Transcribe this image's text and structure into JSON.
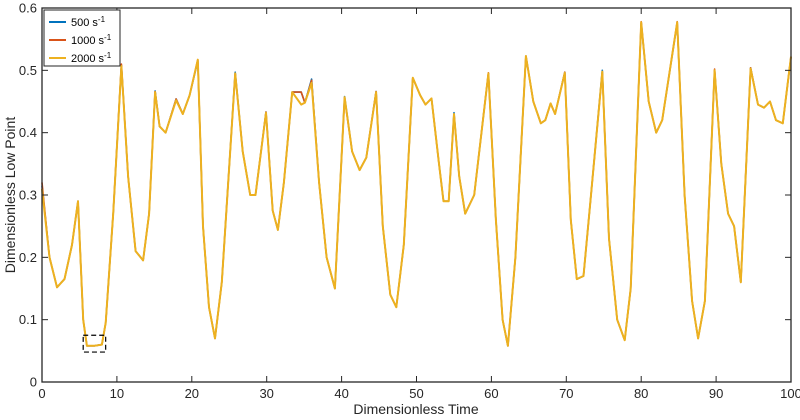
{
  "chart_data": {
    "type": "line",
    "xlabel": "Dimensionless Time",
    "ylabel": "Dimensionless Low Point",
    "xlim": [
      0,
      100
    ],
    "ylim": [
      0,
      0.6
    ],
    "xticks": [
      0,
      10,
      20,
      30,
      40,
      50,
      60,
      70,
      80,
      90,
      100
    ],
    "yticks": [
      0,
      0.1,
      0.2,
      0.3,
      0.4,
      0.5,
      0.6
    ],
    "xtick_labels": [
      "0",
      "10",
      "20",
      "30",
      "40",
      "50",
      "60",
      "70",
      "80",
      "90",
      "100"
    ],
    "ytick_labels": [
      "0",
      "0.1",
      "0.2",
      "0.3",
      "0.4",
      "0.5",
      "0.6"
    ],
    "grid": false,
    "legend_position": "top-left",
    "annotation": "dashed box around the minimum near x = 5.5–8.5, y ≈ 0.06",
    "annotation_box": {
      "x": [
        5.5,
        8.5
      ],
      "y": [
        0.048,
        0.075
      ]
    },
    "series": [
      {
        "name": "500 s",
        "unit_exponent": "-1",
        "color": "#0072BD",
        "peaks": [
          [
            0,
            0.315
          ],
          [
            4.8,
            0.29
          ],
          [
            10.6,
            0.508
          ],
          [
            15.1,
            0.467
          ],
          [
            17.9,
            0.454
          ],
          [
            20.8,
            0.515
          ],
          [
            25.8,
            0.497
          ],
          [
            29.9,
            0.433
          ],
          [
            34.6,
            0.465
          ],
          [
            36.0,
            0.486
          ],
          [
            40.4,
            0.458
          ],
          [
            44.6,
            0.466
          ],
          [
            49.5,
            0.488
          ],
          [
            52.0,
            0.455
          ],
          [
            55.0,
            0.432
          ],
          [
            59.6,
            0.495
          ],
          [
            64.6,
            0.523
          ],
          [
            67.9,
            0.447
          ],
          [
            69.8,
            0.497
          ],
          [
            74.8,
            0.5
          ],
          [
            80.0,
            0.576
          ],
          [
            84.8,
            0.576
          ],
          [
            89.8,
            0.5
          ],
          [
            94.6,
            0.504
          ],
          [
            97.2,
            0.45
          ],
          [
            100,
            0.522
          ]
        ]
      },
      {
        "name": "1000 s",
        "unit_exponent": "-1",
        "color": "#D95319",
        "peaks": [
          [
            0,
            0.32
          ],
          [
            4.8,
            0.29
          ],
          [
            10.6,
            0.51
          ],
          [
            15.1,
            0.466
          ],
          [
            17.9,
            0.454
          ],
          [
            20.8,
            0.517
          ],
          [
            25.8,
            0.495
          ],
          [
            29.9,
            0.433
          ],
          [
            34.6,
            0.465
          ],
          [
            36.0,
            0.484
          ],
          [
            40.4,
            0.455
          ],
          [
            44.6,
            0.466
          ],
          [
            49.5,
            0.488
          ],
          [
            52.0,
            0.455
          ],
          [
            55.0,
            0.429
          ],
          [
            59.6,
            0.496
          ],
          [
            64.6,
            0.523
          ],
          [
            67.9,
            0.447
          ],
          [
            69.8,
            0.497
          ],
          [
            74.8,
            0.497
          ],
          [
            80.0,
            0.578
          ],
          [
            84.8,
            0.578
          ],
          [
            89.8,
            0.502
          ],
          [
            94.6,
            0.504
          ],
          [
            97.2,
            0.45
          ],
          [
            100,
            0.522
          ]
        ]
      },
      {
        "name": "2000 s",
        "unit_exponent": "-1",
        "color": "#EDB120",
        "x": [
          0,
          1,
          2,
          3,
          4,
          4.8,
          5.5,
          6,
          7,
          8,
          8.5,
          9.5,
          10.6,
          11.5,
          12.5,
          13.5,
          14.3,
          15.1,
          15.7,
          16.5,
          17.9,
          18.8,
          19.7,
          20.8,
          21.5,
          22.3,
          23.1,
          24,
          25.8,
          26.8,
          27.8,
          28.5,
          29.9,
          30.8,
          31.5,
          32.3,
          33.4,
          34.6,
          35.1,
          36.0,
          37,
          38,
          39.1,
          40.4,
          41.4,
          42.4,
          43.3,
          44.6,
          45.5,
          46.5,
          47.3,
          48.3,
          49.5,
          50.5,
          51.2,
          52.0,
          53,
          53.6,
          54.3,
          55.0,
          55.7,
          56.5,
          57.7,
          59.6,
          60.6,
          61.5,
          62.2,
          63.2,
          64.6,
          65.6,
          66.6,
          67.2,
          67.9,
          68.5,
          69.8,
          70.6,
          71.4,
          72.3,
          73.3,
          74.8,
          75.7,
          76.8,
          77.8,
          78.6,
          80.0,
          81,
          82,
          82.8,
          84.8,
          85.8,
          86.8,
          87.6,
          88.5,
          89.8,
          90.7,
          91.6,
          92.4,
          93.3,
          94.6,
          95.6,
          96.4,
          97.2,
          98,
          98.9,
          100
        ],
        "y": [
          0.31,
          0.2,
          0.152,
          0.165,
          0.22,
          0.29,
          0.1,
          0.058,
          0.058,
          0.06,
          0.095,
          0.27,
          0.507,
          0.33,
          0.21,
          0.195,
          0.27,
          0.465,
          0.41,
          0.4,
          0.452,
          0.43,
          0.46,
          0.517,
          0.25,
          0.12,
          0.07,
          0.16,
          0.495,
          0.37,
          0.3,
          0.3,
          0.432,
          0.275,
          0.244,
          0.32,
          0.465,
          0.445,
          0.448,
          0.48,
          0.32,
          0.2,
          0.15,
          0.457,
          0.37,
          0.34,
          0.36,
          0.465,
          0.25,
          0.14,
          0.12,
          0.22,
          0.488,
          0.46,
          0.445,
          0.455,
          0.35,
          0.29,
          0.29,
          0.43,
          0.33,
          0.27,
          0.3,
          0.495,
          0.26,
          0.1,
          0.058,
          0.2,
          0.523,
          0.45,
          0.415,
          0.42,
          0.447,
          0.43,
          0.496,
          0.26,
          0.165,
          0.17,
          0.3,
          0.498,
          0.23,
          0.1,
          0.067,
          0.15,
          0.577,
          0.45,
          0.4,
          0.42,
          0.577,
          0.3,
          0.13,
          0.07,
          0.13,
          0.5,
          0.35,
          0.27,
          0.25,
          0.16,
          0.503,
          0.445,
          0.44,
          0.45,
          0.42,
          0.415,
          0.522
        ]
      }
    ]
  }
}
